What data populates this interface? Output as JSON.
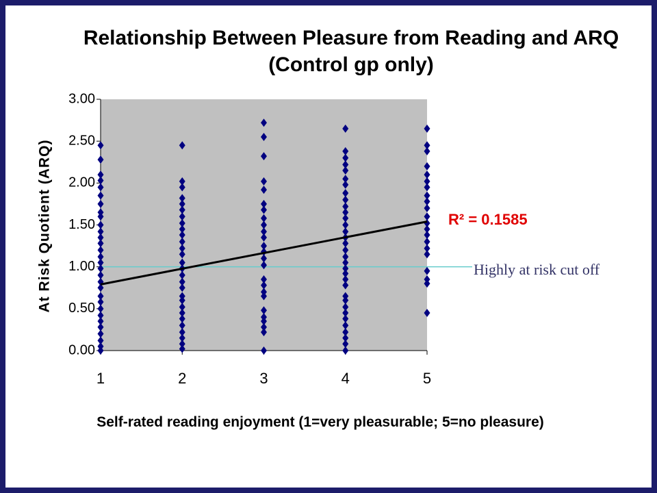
{
  "chart_data": {
    "type": "scatter",
    "title": "Relationship Between Pleasure from Reading and ARQ (Control gp only)",
    "x_label": "Self-rated reading enjoyment (1=very pleasurable; 5=no pleasure)",
    "y_label": "At Risk Quotient (ARQ)",
    "xlim": [
      1,
      5
    ],
    "ylim": [
      0,
      3
    ],
    "xticks": [
      1,
      2,
      3,
      4,
      5
    ],
    "yticks": [
      {
        "value": 0,
        "label": "0.00"
      },
      {
        "value": 0.5,
        "label": "0.50"
      },
      {
        "value": 1,
        "label": "1.00"
      },
      {
        "value": 1.5,
        "label": "1.50"
      },
      {
        "value": 2,
        "label": "2.00"
      },
      {
        "value": 2.5,
        "label": "2.50"
      },
      {
        "value": 3,
        "label": "3.00"
      }
    ],
    "series": [
      {
        "color": "#000080",
        "x": [
          1,
          1,
          1,
          1,
          1,
          1,
          1,
          1,
          1,
          1,
          1,
          1,
          1,
          1,
          1,
          1,
          1,
          1,
          1,
          1,
          1,
          1,
          1,
          1,
          1,
          1,
          1,
          1,
          1,
          1,
          2,
          2,
          2,
          2,
          2,
          2,
          2,
          2,
          2,
          2,
          2,
          2,
          2,
          2,
          2,
          2,
          2,
          2,
          2,
          2,
          2,
          2,
          2,
          2,
          2,
          2,
          2,
          2,
          3,
          3,
          3,
          3,
          3,
          3,
          3,
          3,
          3,
          3,
          3,
          3,
          3,
          3,
          3,
          3,
          3,
          3,
          3,
          3,
          3,
          3,
          3,
          3,
          3,
          4,
          4,
          4,
          4,
          4,
          4,
          4,
          4,
          4,
          4,
          4,
          4,
          4,
          4,
          4,
          4,
          4,
          4,
          4,
          4,
          4,
          4,
          4,
          4,
          4,
          4,
          4,
          4,
          4,
          4,
          4,
          4,
          4,
          5,
          5,
          5,
          5,
          5,
          5,
          5,
          5,
          5,
          5,
          5,
          5,
          5,
          5,
          5,
          5,
          5,
          5,
          5,
          5,
          5
        ],
        "values": [
          2.45,
          2.28,
          2.1,
          2.03,
          1.95,
          1.85,
          1.75,
          1.65,
          1.6,
          1.5,
          1.42,
          1.35,
          1.28,
          1.2,
          1.12,
          1.05,
          0.98,
          0.9,
          0.82,
          0.75,
          0.65,
          0.58,
          0.5,
          0.42,
          0.35,
          0.28,
          0.2,
          0.12,
          0.05,
          0.0,
          2.45,
          2.02,
          1.95,
          1.82,
          1.75,
          1.68,
          1.6,
          1.52,
          1.45,
          1.38,
          1.3,
          1.22,
          1.15,
          1.05,
          0.98,
          0.9,
          0.82,
          0.75,
          0.65,
          0.6,
          0.52,
          0.45,
          0.38,
          0.3,
          0.22,
          0.15,
          0.08,
          0.02,
          2.72,
          2.55,
          2.32,
          2.02,
          1.92,
          1.75,
          1.68,
          1.58,
          1.5,
          1.42,
          1.35,
          1.25,
          1.18,
          1.1,
          1.02,
          0.85,
          0.78,
          0.7,
          0.65,
          0.48,
          0.4,
          0.35,
          0.28,
          0.22,
          0.0,
          2.65,
          2.38,
          2.3,
          2.22,
          2.15,
          2.05,
          1.98,
          1.88,
          1.8,
          1.72,
          1.65,
          1.58,
          1.5,
          1.42,
          1.35,
          1.28,
          1.2,
          1.12,
          1.05,
          0.98,
          0.92,
          0.85,
          0.78,
          0.65,
          0.6,
          0.52,
          0.45,
          0.38,
          0.3,
          0.22,
          0.15,
          0.08,
          0.0,
          2.65,
          2.45,
          2.38,
          2.2,
          2.1,
          2.02,
          1.95,
          1.85,
          1.78,
          1.7,
          1.6,
          1.52,
          1.45,
          1.38,
          1.3,
          1.22,
          1.15,
          0.95,
          0.85,
          0.8,
          0.45
        ]
      }
    ],
    "trendline": {
      "color": "#000000",
      "x": [
        1,
        5
      ],
      "values": [
        0.79,
        1.54
      ]
    },
    "r_squared_label": "R² = 0.1585",
    "cutoff": {
      "value": 1,
      "color": "#66cccc",
      "label": "Highly at risk cut off"
    },
    "plot_background": "#c0c0c0"
  }
}
